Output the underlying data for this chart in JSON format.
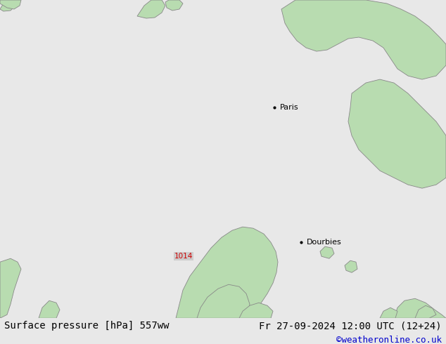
{
  "title_left": "Surface pressure [hPa] 557ww",
  "title_right": "Fr 27-09-2024 12:00 UTC (12+24)",
  "credit": "©weatheronline.co.uk",
  "bg_color": "#c8c8c8",
  "land_color": "#b8dcb0",
  "border_color": "#888888",
  "isobar_blue_color": "#3333cc",
  "isobar_black_color": "#000000",
  "isobar_red_color": "#cc0000",
  "label_blue": "#3333cc",
  "label_black": "#000000",
  "label_red": "#cc0000",
  "bottom_bar_color": "#e8e8e8",
  "credit_color": "#0000cc",
  "font_size_bottom": 10,
  "paris_label": "Paris",
  "dourbies_label": "Dourbies"
}
